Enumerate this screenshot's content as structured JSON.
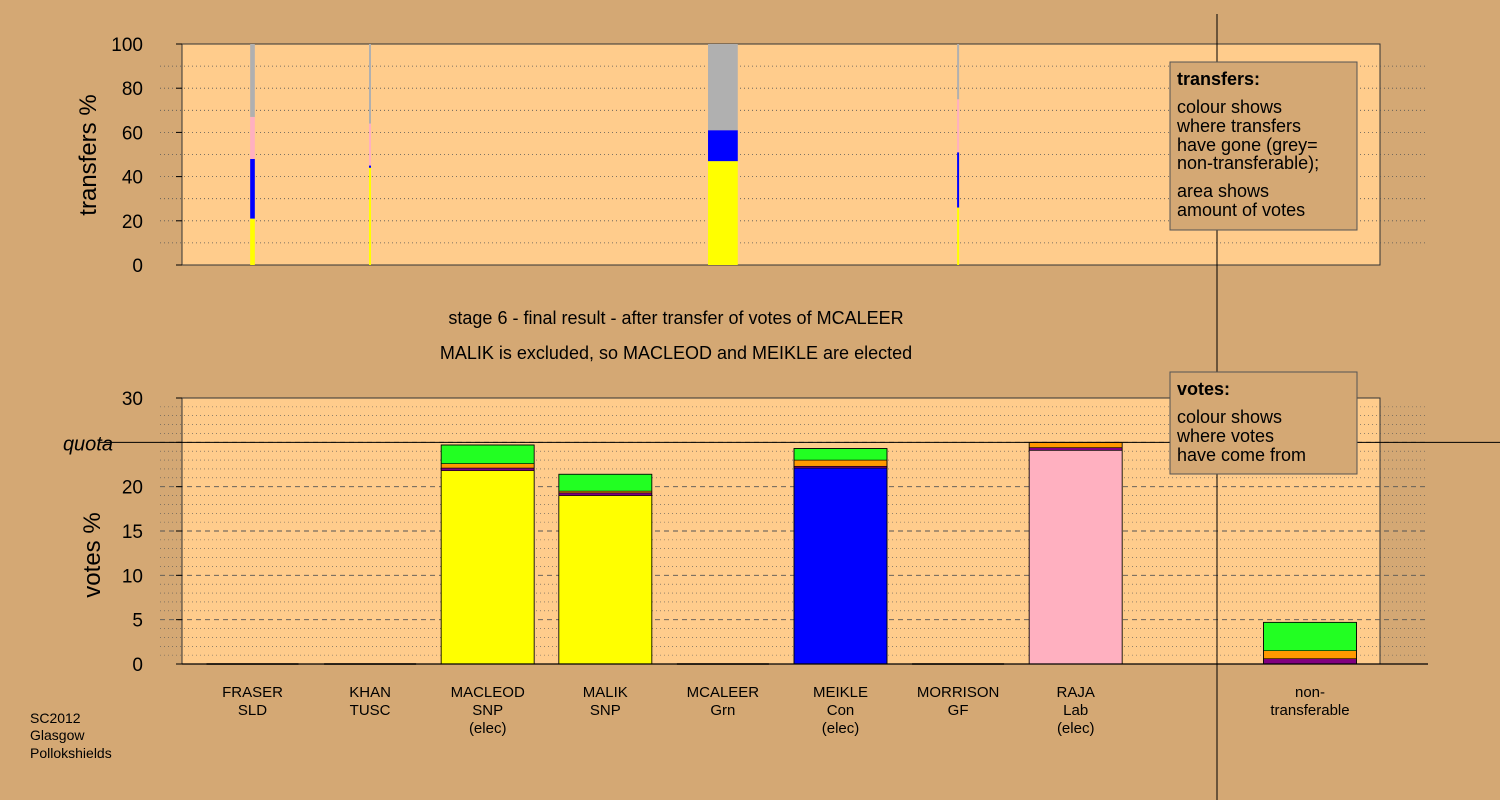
{
  "chart_data": [
    {
      "type": "bar",
      "panel": "transfers",
      "ylabel": "transfers %",
      "ylim": [
        0,
        100
      ],
      "yticks": [
        0,
        20,
        40,
        60,
        80,
        100
      ],
      "grid": "dotted",
      "legend_title": "transfers:",
      "legend_lines_a": [
        "colour shows",
        "where transfers",
        "have gone (grey=",
        "non-transferable);"
      ],
      "legend_lines_b": [
        "area shows",
        "amount of votes"
      ],
      "legend_position": "top-right",
      "bars": [
        {
          "candidate": "FRASER",
          "width_share": 0.05,
          "segments": [
            {
              "color": "#ffff00",
              "value": 21
            },
            {
              "color": "#0000ff",
              "value": 27
            },
            {
              "color": "#ffb0c0",
              "value": 19
            },
            {
              "color": "#b0b0b0",
              "value": 33
            }
          ]
        },
        {
          "candidate": "KHAN",
          "width_share": 0.01,
          "segments": [
            {
              "color": "#ffff00",
              "value": 44
            },
            {
              "color": "#0000ff",
              "value": 1
            },
            {
              "color": "#ffb0c0",
              "value": 19
            },
            {
              "color": "#b0b0b0",
              "value": 36
            }
          ]
        },
        {
          "candidate": "MCALEER",
          "width_share": 0.32,
          "segments": [
            {
              "color": "#ffff00",
              "value": 47
            },
            {
              "color": "#0000ff",
              "value": 14
            },
            {
              "color": "#b0b0b0",
              "value": 39
            }
          ]
        },
        {
          "candidate": "MORRISON",
          "width_share": 0.005,
          "segments": [
            {
              "color": "#ffff00",
              "value": 26
            },
            {
              "color": "#0000ff",
              "value": 25
            },
            {
              "color": "#ffb0c0",
              "value": 24
            },
            {
              "color": "#b0b0b0",
              "value": 25
            }
          ]
        }
      ]
    },
    {
      "type": "bar",
      "panel": "votes",
      "ylabel": "votes %",
      "ylim": [
        0,
        30
      ],
      "yticks": [
        0,
        5,
        10,
        15,
        20,
        25,
        30
      ],
      "quota": 25,
      "quota_label": "quota",
      "grid": "dashed",
      "legend_title": "votes:",
      "legend_lines": [
        "colour shows",
        "where votes",
        "have come from"
      ],
      "legend_position": "top-right",
      "categories": [
        {
          "name": "FRASER",
          "party": "SLD",
          "status": ""
        },
        {
          "name": "KHAN",
          "party": "TUSC",
          "status": ""
        },
        {
          "name": "MACLEOD",
          "party": "SNP",
          "status": "(elec)"
        },
        {
          "name": "MALIK",
          "party": "SNP",
          "status": ""
        },
        {
          "name": "MCALEER",
          "party": "Grn",
          "status": ""
        },
        {
          "name": "MEIKLE",
          "party": "Con",
          "status": "(elec)"
        },
        {
          "name": "MORRISON",
          "party": "GF",
          "status": ""
        },
        {
          "name": "RAJA",
          "party": "Lab",
          "status": "(elec)"
        }
      ],
      "nontransferable_label": [
        "non-",
        "transferable"
      ],
      "bars": [
        {
          "candidate": "FRASER",
          "segments": []
        },
        {
          "candidate": "KHAN",
          "segments": []
        },
        {
          "candidate": "MACLEOD",
          "segments": [
            {
              "color": "#ffff00",
              "value": 21.8
            },
            {
              "color": "#800080",
              "value": 0.3
            },
            {
              "color": "#ff9900",
              "value": 0.5
            },
            {
              "color": "#22ff22",
              "value": 2.1
            }
          ]
        },
        {
          "candidate": "MALIK",
          "segments": [
            {
              "color": "#ffff00",
              "value": 19.0
            },
            {
              "color": "#800080",
              "value": 0.3
            },
            {
              "color": "#ff9900",
              "value": 0.2
            },
            {
              "color": "#22ff22",
              "value": 1.9
            }
          ]
        },
        {
          "candidate": "MCALEER",
          "segments": []
        },
        {
          "candidate": "MEIKLE",
          "segments": [
            {
              "color": "#0000ff",
              "value": 22.1
            },
            {
              "color": "#800080",
              "value": 0.2
            },
            {
              "color": "#ff9900",
              "value": 0.7
            },
            {
              "color": "#22ff22",
              "value": 1.3
            }
          ]
        },
        {
          "candidate": "MORRISON",
          "segments": []
        },
        {
          "candidate": "RAJA",
          "segments": [
            {
              "color": "#ffb0c0",
              "value": 24.1
            },
            {
              "color": "#800080",
              "value": 0.3
            },
            {
              "color": "#ff9900",
              "value": 0.6
            }
          ]
        },
        {
          "candidate": "non-transferable",
          "segments": [
            {
              "color": "#800080",
              "value": 0.6
            },
            {
              "color": "#ff9900",
              "value": 0.9
            },
            {
              "color": "#22ff22",
              "value": 3.2
            }
          ]
        }
      ]
    }
  ],
  "title_lines": [
    "stage 6 - final result - after transfer of votes of MCALEER",
    "MALIK is excluded, so MACLEOD and MEIKLE are elected"
  ],
  "footer": [
    "SC2012",
    "Glasgow",
    "Pollokshields"
  ],
  "colors": {
    "background": "#d4a874",
    "plot_background": "#ffcc8c",
    "quota_line": "#000000"
  }
}
